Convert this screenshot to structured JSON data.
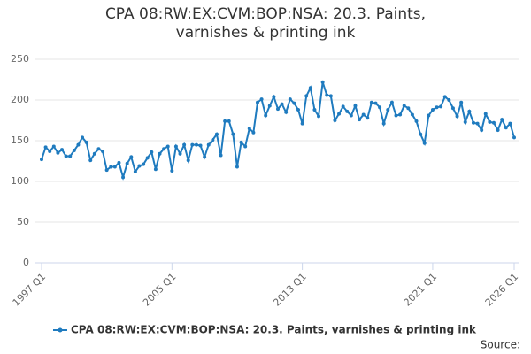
{
  "chart_data": {
    "type": "line",
    "title": "CPA 08:RW:EX:CVM:BOP:NSA: 20.3. Paints, varnishes & printing ink",
    "source": "Source:",
    "categories": [
      "1997 Q1",
      null,
      null,
      null,
      null,
      null,
      null,
      null,
      null,
      null,
      null,
      null,
      null,
      null,
      null,
      null,
      null,
      null,
      null,
      null,
      null,
      null,
      null,
      null,
      null,
      null,
      null,
      null,
      null,
      null,
      null,
      null,
      "2005 Q1",
      null,
      null,
      null,
      null,
      null,
      null,
      null,
      null,
      null,
      null,
      null,
      null,
      null,
      null,
      null,
      null,
      null,
      null,
      null,
      null,
      null,
      null,
      null,
      null,
      null,
      null,
      null,
      null,
      null,
      null,
      null,
      "2013 Q1",
      null,
      null,
      null,
      null,
      null,
      null,
      null,
      null,
      null,
      null,
      null,
      null,
      null,
      null,
      null,
      null,
      null,
      null,
      null,
      null,
      null,
      null,
      null,
      null,
      null,
      null,
      null,
      null,
      null,
      null,
      null,
      "2021 Q1",
      null,
      null,
      null,
      null,
      null,
      null,
      null,
      null,
      null,
      null,
      null,
      null,
      null,
      null,
      null,
      null,
      null,
      null,
      null,
      "2026 Q1"
    ],
    "series": [
      {
        "name": "CPA 08:RW:EX:CVM:BOP:NSA: 20.3. Paints, varnishes & printing ink",
        "color": "#1f7bbf",
        "values": [
          127,
          142,
          137,
          143,
          135,
          139,
          131,
          131,
          138,
          145,
          154,
          148,
          126,
          134,
          140,
          137,
          114,
          118,
          118,
          123,
          105,
          122,
          130,
          112,
          119,
          121,
          129,
          136,
          115,
          134,
          140,
          143,
          113,
          143,
          134,
          145,
          126,
          145,
          145,
          144,
          130,
          145,
          151,
          158,
          132,
          174,
          174,
          158,
          118,
          148,
          143,
          165,
          160,
          197,
          201,
          181,
          193,
          204,
          189,
          195,
          185,
          201,
          196,
          188,
          171,
          205,
          215,
          188,
          180,
          222,
          206,
          205,
          175,
          183,
          192,
          186,
          181,
          193,
          176,
          182,
          178,
          197,
          196,
          191,
          171,
          188,
          197,
          181,
          182,
          193,
          190,
          182,
          174,
          158,
          147,
          181,
          188,
          191,
          192,
          204,
          200,
          190,
          180,
          197,
          173,
          186,
          172,
          171,
          163,
          183,
          173,
          172,
          163,
          176,
          166,
          171,
          154
        ]
      }
    ],
    "ylim": [
      0,
      250
    ],
    "yticks": [
      0,
      50,
      100,
      150,
      200,
      250
    ],
    "grid": true
  }
}
